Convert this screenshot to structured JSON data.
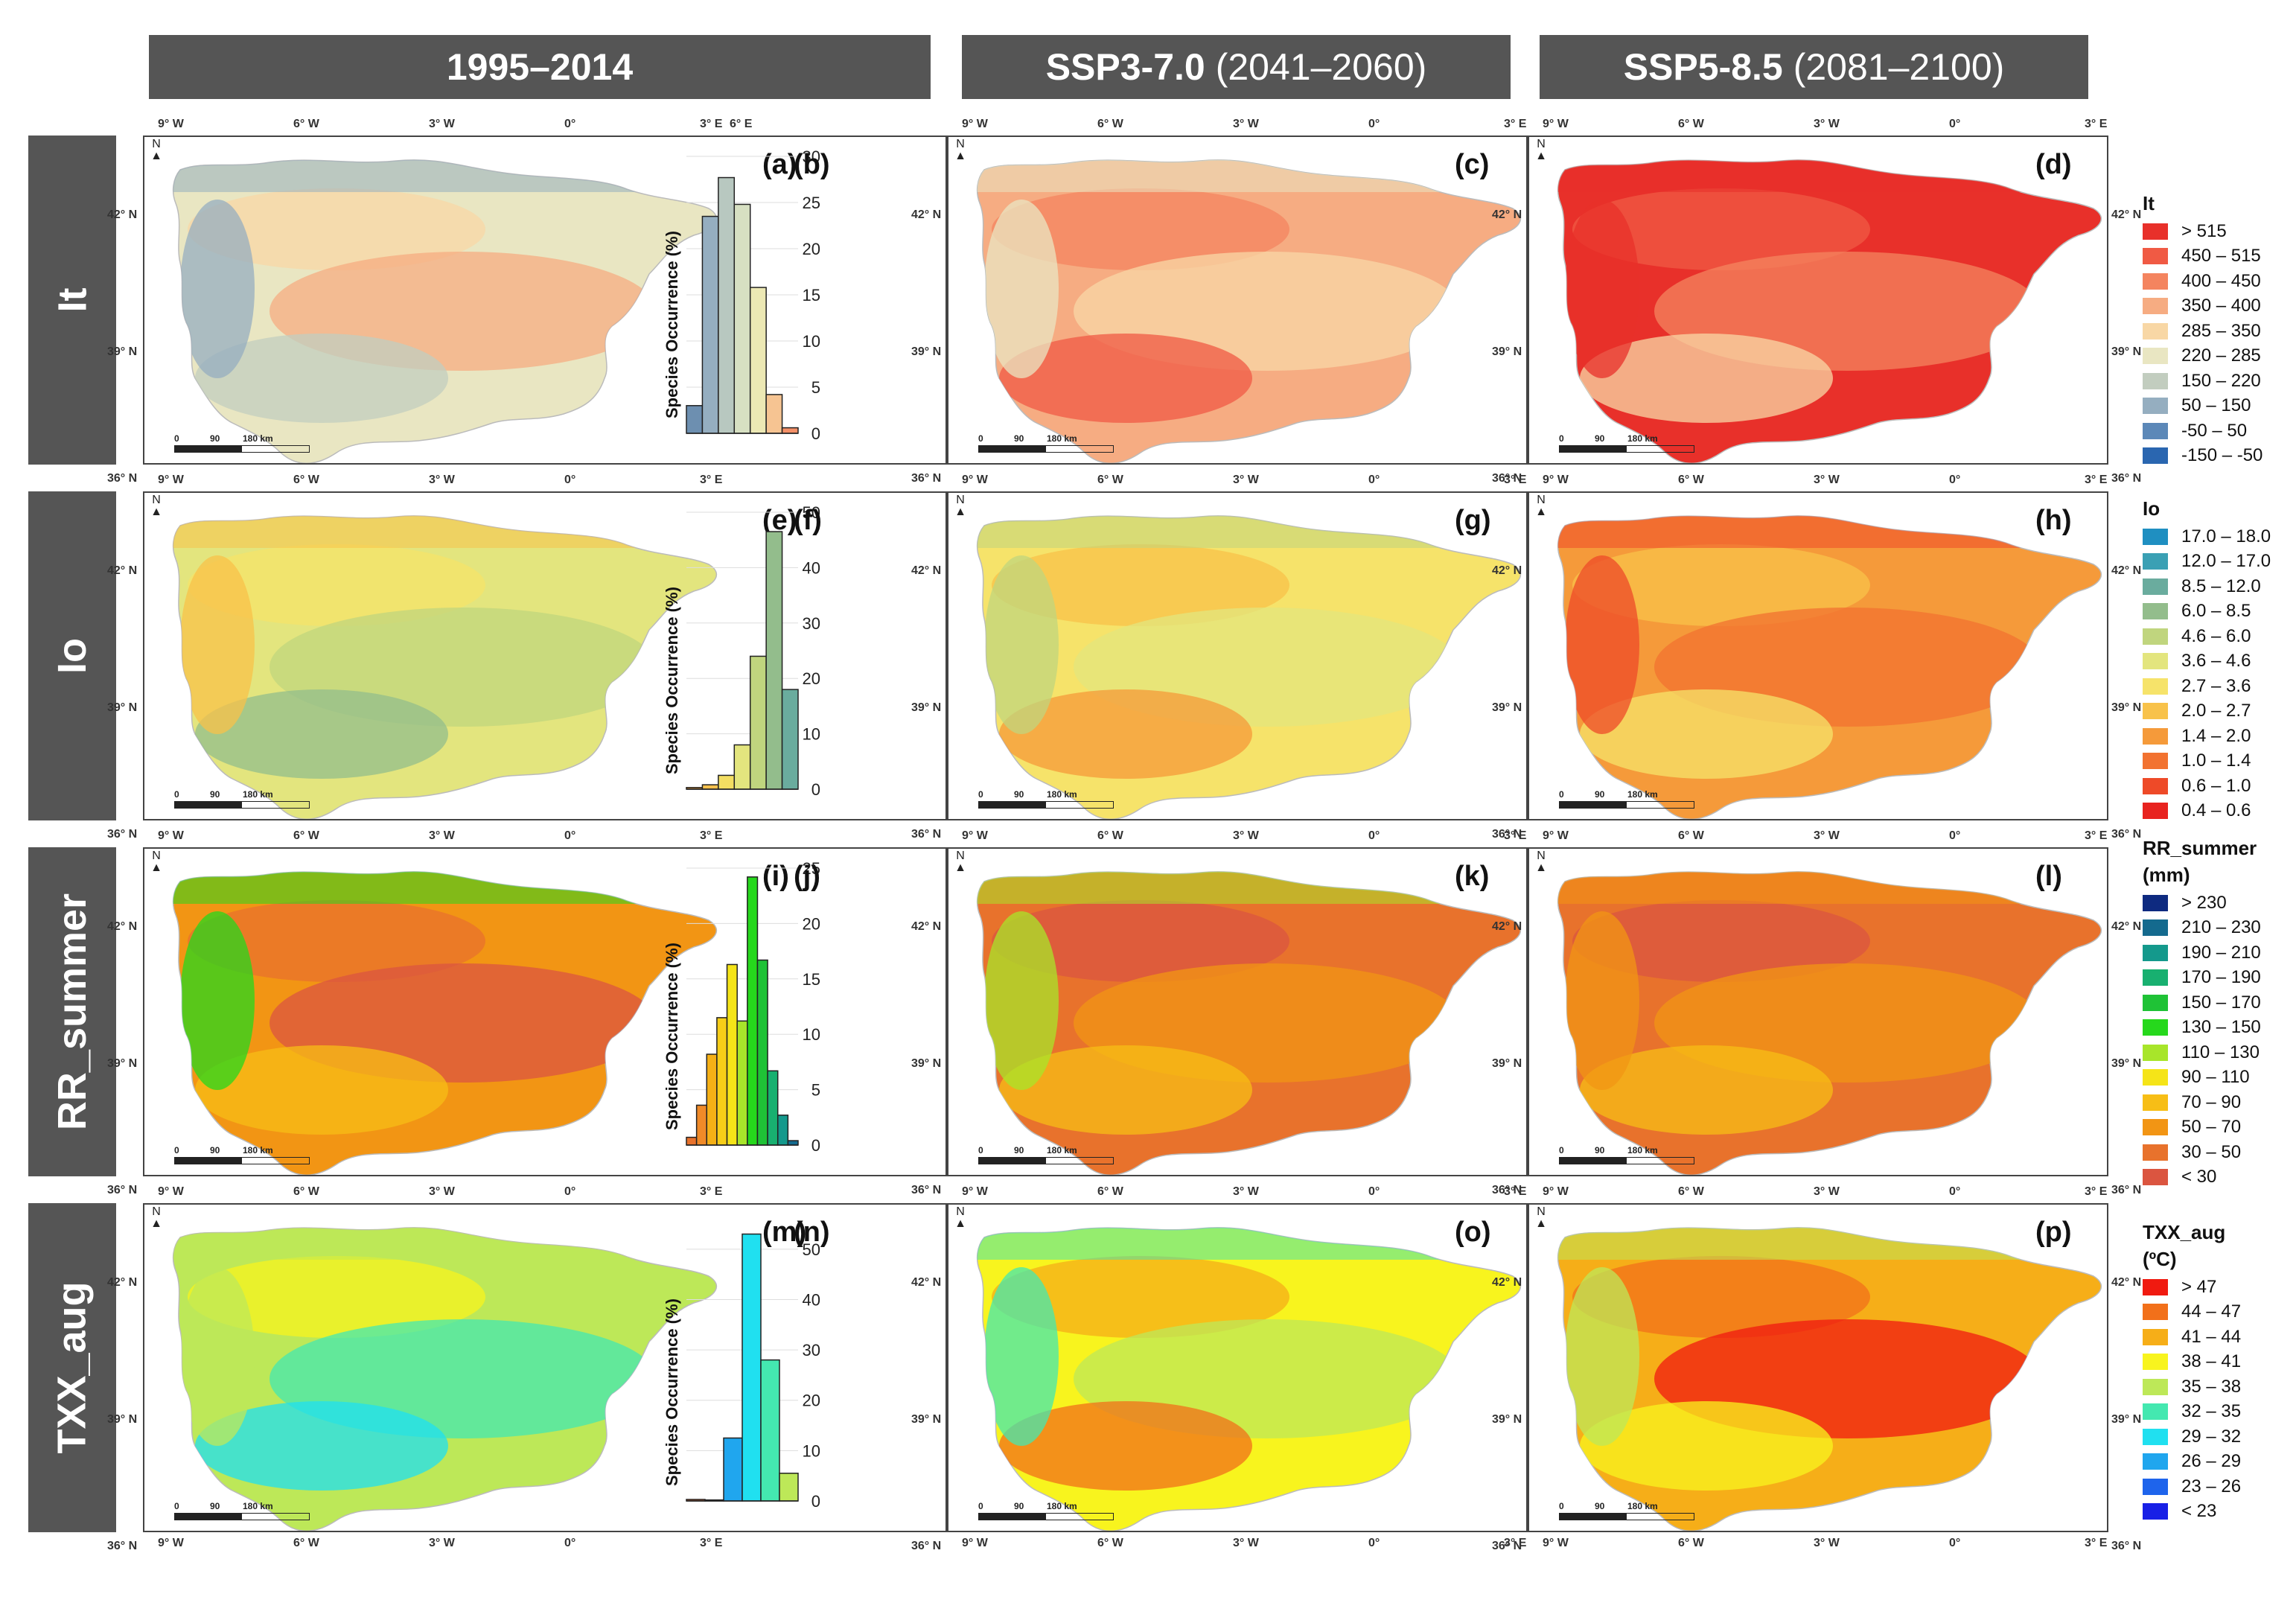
{
  "columns": [
    {
      "bold": "1995–2014",
      "rest": ""
    },
    {
      "bold": "SSP3-7.0",
      "rest": "(2041–2060)"
    },
    {
      "bold": "SSP5-8.5",
      "rest": "(2081–2100)"
    }
  ],
  "rows": [
    {
      "name": "It",
      "panels": [
        "(a)",
        "(b)",
        "(c)",
        "(d)"
      ]
    },
    {
      "name": "Io",
      "panels": [
        "(e)",
        "(f)",
        "(g)",
        "(h)"
      ]
    },
    {
      "name": "RR_summer",
      "panels": [
        "(i)",
        "(j)",
        "(k)",
        "(l)"
      ]
    },
    {
      "name": "TXX_aug",
      "panels": [
        "(m)",
        "(n)",
        "(o)",
        "(p)"
      ]
    }
  ],
  "axis": {
    "lon_ticks": [
      "9° W",
      "6° W",
      "3° W",
      "0°",
      "3° E"
    ],
    "lat_ticks": [
      "42° N",
      "39° N",
      "36° N"
    ],
    "hist_x_tick": "6° E",
    "scale_labels": [
      "0",
      "90",
      "180 km"
    ],
    "north": "N"
  },
  "legends": [
    {
      "title": "It",
      "items": [
        {
          "label": "> 515",
          "color": "#e8302a"
        },
        {
          "label": "450 – 515",
          "color": "#f05a44"
        },
        {
          "label": "400 – 450",
          "color": "#f4845f"
        },
        {
          "label": "350 – 400",
          "color": "#f6ac82"
        },
        {
          "label": "285 – 350",
          "color": "#f8d7a5"
        },
        {
          "label": "220 – 285",
          "color": "#e9e6c2"
        },
        {
          "label": "150 – 220",
          "color": "#c2cdbf"
        },
        {
          "label": "50 – 150",
          "color": "#95aec0"
        },
        {
          "label": "-50 – 50",
          "color": "#5c88b8"
        },
        {
          "label": "-150 – -50",
          "color": "#2a66b0"
        }
      ]
    },
    {
      "title": "Io",
      "items": [
        {
          "label": "17.0 – 18.0",
          "color": "#1f8fc1"
        },
        {
          "label": "12.0 – 17.0",
          "color": "#3aa0b4"
        },
        {
          "label": "8.5 – 12.0",
          "color": "#6aac9e"
        },
        {
          "label": "6.0 – 8.5",
          "color": "#93bd8c"
        },
        {
          "label": "4.6 – 6.0",
          "color": "#c0d57e"
        },
        {
          "label": "3.6 – 4.6",
          "color": "#e3e57e"
        },
        {
          "label": "2.7 – 3.6",
          "color": "#f6e36a"
        },
        {
          "label": "2.0 – 2.7",
          "color": "#f8c24a"
        },
        {
          "label": "1.4 – 2.0",
          "color": "#f59a3a"
        },
        {
          "label": "1.0 – 1.4",
          "color": "#f27230"
        },
        {
          "label": "0.6 – 1.0",
          "color": "#ee4a28"
        },
        {
          "label": "0.4 – 0.6",
          "color": "#e8231f"
        }
      ]
    },
    {
      "title": "RR_summer",
      "subtitle": "(mm)",
      "items": [
        {
          "label": "> 230",
          "color": "#0e2a80"
        },
        {
          "label": "210 – 230",
          "color": "#146a8e"
        },
        {
          "label": "190 – 210",
          "color": "#14998c"
        },
        {
          "label": "170 – 190",
          "color": "#18b070"
        },
        {
          "label": "150 – 170",
          "color": "#1fc236"
        },
        {
          "label": "130 – 150",
          "color": "#26d81c"
        },
        {
          "label": "110 – 130",
          "color": "#a8e52a"
        },
        {
          "label": "90 – 110",
          "color": "#f5e418"
        },
        {
          "label": "70 – 90",
          "color": "#f7be16"
        },
        {
          "label": "50 – 70",
          "color": "#f29514"
        },
        {
          "label": "30 – 50",
          "color": "#e8722c"
        },
        {
          "label": "< 30",
          "color": "#db5540"
        }
      ]
    },
    {
      "title": "TXX_aug",
      "subtitle": "(ºC)",
      "items": [
        {
          "label": "> 47",
          "color": "#f01a10"
        },
        {
          "label": "44 – 47",
          "color": "#f2701a"
        },
        {
          "label": "41 – 44",
          "color": "#f6ae18"
        },
        {
          "label": "38 – 41",
          "color": "#f8f41e"
        },
        {
          "label": "35 – 38",
          "color": "#bde858"
        },
        {
          "label": "32 – 35",
          "color": "#44e8b0"
        },
        {
          "label": "29 – 32",
          "color": "#20e0f0"
        },
        {
          "label": "26 – 29",
          "color": "#20a6ee"
        },
        {
          "label": "23 – 26",
          "color": "#1e64ec"
        },
        {
          "label": "< 23",
          "color": "#1820e6"
        }
      ]
    }
  ],
  "chart_data": [
    {
      "type": "bar",
      "panel": "(b)",
      "ylabel": "Species Occurrence (%)",
      "xtick": "6° E",
      "ylim": [
        0,
        30
      ],
      "yticks": [
        0,
        5,
        10,
        15,
        20,
        25,
        30
      ],
      "values": [
        3,
        23.5,
        27.7,
        24.8,
        15.8,
        4.2,
        0.6
      ],
      "colors": [
        "#6d8fb0",
        "#95aec0",
        "#b8c8c0",
        "#d7e0c2",
        "#ece8b4",
        "#f6c492",
        "#f49068"
      ]
    },
    {
      "type": "bar",
      "panel": "(f)",
      "ylabel": "Species Occurrence  (%)",
      "ylim": [
        0,
        50
      ],
      "yticks": [
        0,
        10,
        20,
        30,
        40,
        50
      ],
      "values": [
        0.3,
        0.8,
        2.5,
        8,
        24,
        46.5,
        18
      ],
      "colors": [
        "#f2a23c",
        "#f6c04c",
        "#f3de62",
        "#e3e57e",
        "#c0d57e",
        "#93bd8c",
        "#6aac9e"
      ]
    },
    {
      "type": "bar",
      "panel": "(j)",
      "ylabel": "Species Occurrence (%)",
      "ylim": [
        0,
        25
      ],
      "yticks": [
        0,
        5,
        10,
        15,
        20,
        25
      ],
      "values": [
        0.7,
        3.6,
        8.2,
        11.5,
        16.3,
        11.2,
        24.2,
        16.7,
        6.7,
        2.7,
        0.4
      ],
      "colors": [
        "#e8722c",
        "#f08a28",
        "#f5b016",
        "#f7ce18",
        "#f5e418",
        "#a8e52a",
        "#26d81c",
        "#1fc236",
        "#18b070",
        "#14998c",
        "#146a8e"
      ]
    },
    {
      "type": "bar",
      "panel": "(n)",
      "ylabel": "Species Occurrence  (%)",
      "ylim": [
        0,
        55
      ],
      "yticks": [
        0,
        10,
        20,
        30,
        40,
        50
      ],
      "values": [
        0.3,
        0.2,
        12.5,
        53,
        28,
        5.5
      ],
      "colors": [
        "#e86a30",
        "#1e64ec",
        "#20a6ee",
        "#20e0f0",
        "#44e8b0",
        "#bde858"
      ]
    }
  ]
}
